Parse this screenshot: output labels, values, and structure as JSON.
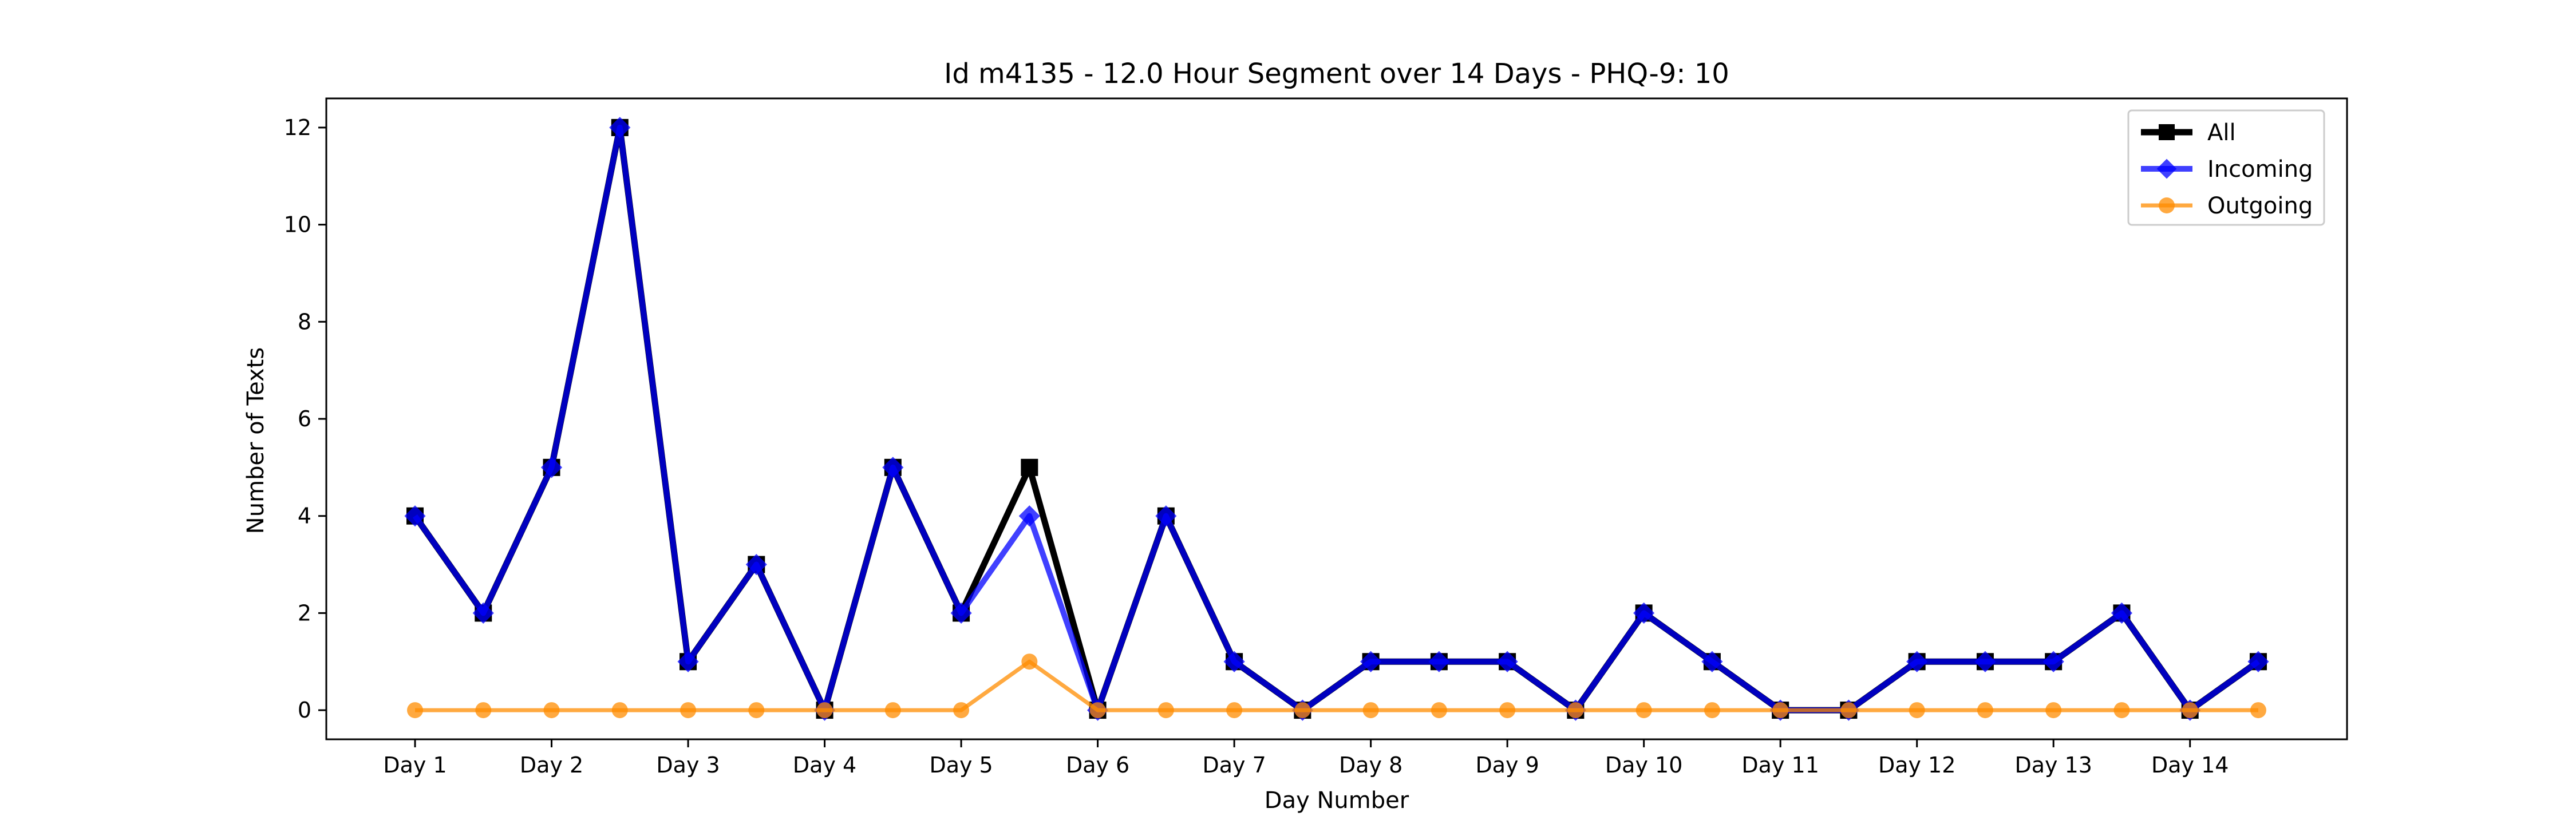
{
  "chart_data": {
    "type": "line",
    "title": "Id m4135 - 12.0 Hour Segment over 14 Days - PHQ-9: 10",
    "xlabel": "Day Number",
    "ylabel": "Number of Texts",
    "x": [
      1,
      1.5,
      2,
      2.5,
      3,
      3.5,
      4,
      4.5,
      5,
      5.5,
      6,
      6.5,
      7,
      7.5,
      8,
      8.5,
      9,
      9.5,
      10,
      10.5,
      11,
      11.5,
      12,
      12.5,
      13,
      13.5,
      14,
      14.5
    ],
    "xticks": [
      1,
      2,
      3,
      4,
      5,
      6,
      7,
      8,
      9,
      10,
      11,
      12,
      13,
      14
    ],
    "xtick_labels": [
      "Day 1",
      "Day 2",
      "Day 3",
      "Day 4",
      "Day 5",
      "Day 6",
      "Day 7",
      "Day 8",
      "Day 9",
      "Day 10",
      "Day 11",
      "Day 12",
      "Day 13",
      "Day 14"
    ],
    "yticks": [
      0,
      2,
      4,
      6,
      8,
      10,
      12
    ],
    "ytick_labels": [
      "0",
      "2",
      "4",
      "6",
      "8",
      "10",
      "12"
    ],
    "xlim": [
      0.35,
      15.15
    ],
    "ylim": [
      -0.6,
      12.6
    ],
    "grid": false,
    "legend_position": "top-right",
    "series": [
      {
        "name": "All",
        "color": "#000000",
        "marker": "square",
        "values": [
          4,
          2,
          5,
          12,
          1,
          3,
          0,
          5,
          2,
          5,
          0,
          4,
          1,
          0,
          1,
          1,
          1,
          0,
          2,
          1,
          0,
          0,
          1,
          1,
          1,
          2,
          0,
          1
        ]
      },
      {
        "name": "Incoming",
        "color": "#0000ff",
        "marker": "diamond",
        "values": [
          4,
          2,
          5,
          12,
          1,
          3,
          0,
          5,
          2,
          4,
          0,
          4,
          1,
          0,
          1,
          1,
          1,
          0,
          2,
          1,
          0,
          0,
          1,
          1,
          1,
          2,
          0,
          1
        ]
      },
      {
        "name": "Outgoing",
        "color": "#ff8c00",
        "marker": "circle",
        "values": [
          0,
          0,
          0,
          0,
          0,
          0,
          0,
          0,
          0,
          1,
          0,
          0,
          0,
          0,
          0,
          0,
          0,
          0,
          0,
          0,
          0,
          0,
          0,
          0,
          0,
          0,
          0,
          0
        ]
      }
    ]
  }
}
